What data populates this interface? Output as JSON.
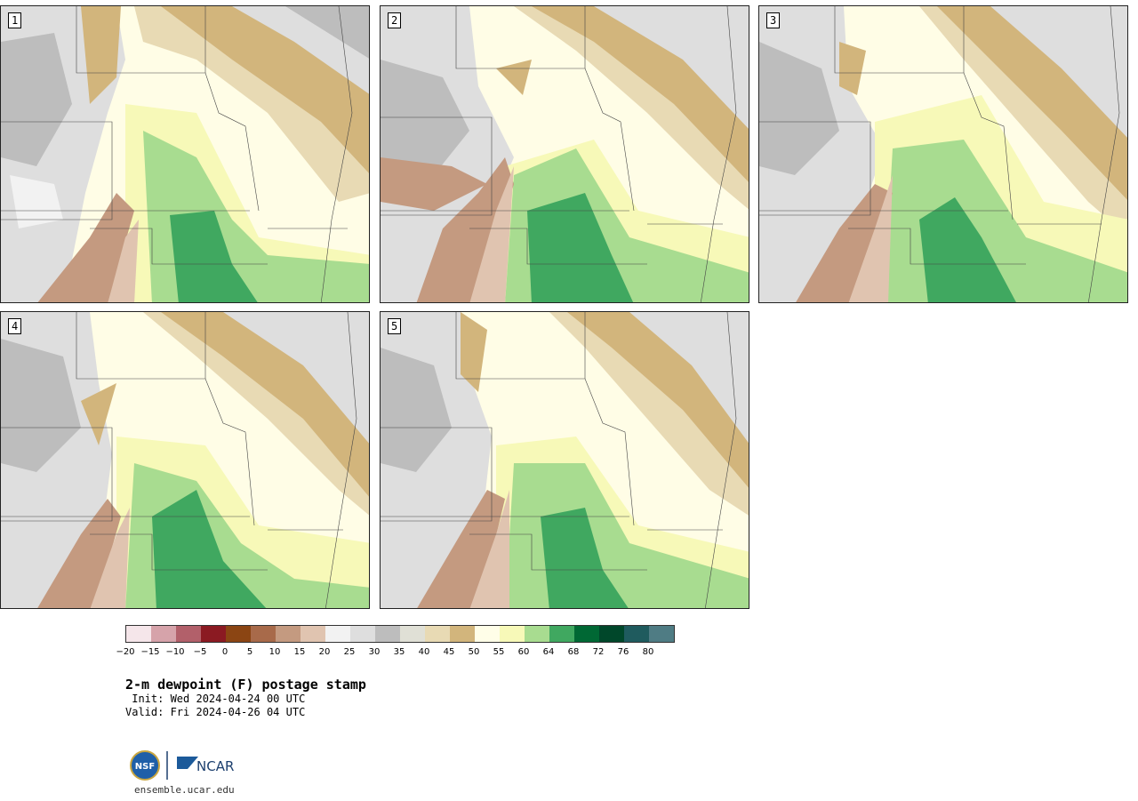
{
  "panels": [
    {
      "label": "1"
    },
    {
      "label": "2"
    },
    {
      "label": "3"
    },
    {
      "label": "4"
    },
    {
      "label": "5"
    }
  ],
  "colorbar": {
    "ticks": [
      "−20",
      "−15",
      "−10",
      "−5",
      "0",
      "5",
      "10",
      "15",
      "20",
      "25",
      "30",
      "35",
      "40",
      "45",
      "50",
      "55",
      "60",
      "64",
      "68",
      "72",
      "76",
      "80"
    ],
    "colors": [
      "#f5e6ea",
      "#d6a3aa",
      "#b2606a",
      "#8b1a22",
      "#8b4513",
      "#a86a4a",
      "#c49a80",
      "#e0c4b0",
      "#f2f2f2",
      "#dedede",
      "#bdbdbd",
      "#e0e0d6",
      "#e8dab4",
      "#d2b57c",
      "#fffee8",
      "#f7f9b8",
      "#a8dc90",
      "#40a860",
      "#006834",
      "#00472a",
      "#1f5b5e",
      "#4f7c84"
    ]
  },
  "title": "2-m dewpoint (F) postage stamp",
  "init": " Init: Wed 2024-04-24 00 UTC",
  "valid": "Valid: Fri 2024-04-26 04 UTC",
  "logo_text": "NCAR",
  "url": "ensemble.ucar.edu"
}
